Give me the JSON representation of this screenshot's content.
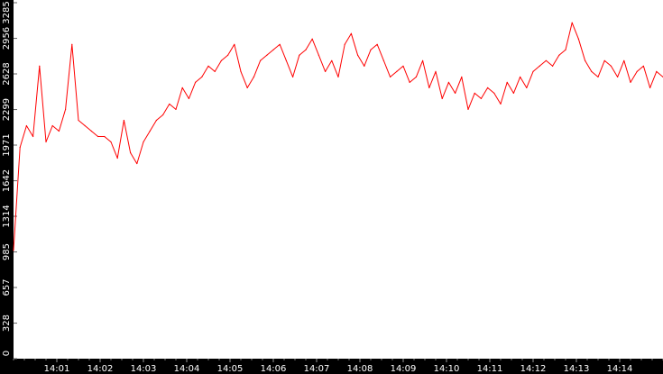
{
  "chart_data": {
    "type": "line",
    "title": "",
    "xlabel": "",
    "ylabel": "",
    "ylim": [
      0,
      3285
    ],
    "y_ticks": [
      "0",
      "328",
      "657",
      "985",
      "1314",
      "1642",
      "1971",
      "2299",
      "2628",
      "2956",
      "3285"
    ],
    "x_tick_labels": [
      "14:01",
      "14:02",
      "14:03",
      "14:04",
      "14:05",
      "14:06",
      "14:07",
      "14:08",
      "14:09",
      "14:10",
      "14:11",
      "14:12",
      "14:13",
      "14:14"
    ],
    "x_range_minutes": [
      0,
      15
    ],
    "grid": false,
    "legend": "none",
    "series": [
      {
        "color": "#ff0000",
        "x": [
          0,
          0.15,
          0.3,
          0.45,
          0.6,
          0.75,
          0.9,
          1.05,
          1.2,
          1.35,
          1.5,
          1.65,
          1.8,
          1.95,
          2.1,
          2.25,
          2.4,
          2.55,
          2.7,
          2.85,
          3.0,
          3.15,
          3.3,
          3.45,
          3.6,
          3.75,
          3.9,
          4.05,
          4.2,
          4.35,
          4.5,
          4.65,
          4.8,
          4.95,
          5.1,
          5.25,
          5.4,
          5.55,
          5.7,
          5.85,
          6.0,
          6.15,
          6.3,
          6.45,
          6.6,
          6.75,
          6.9,
          7.05,
          7.2,
          7.35,
          7.5,
          7.65,
          7.8,
          7.95,
          8.1,
          8.25,
          8.4,
          8.55,
          8.7,
          8.85,
          9.0,
          9.15,
          9.3,
          9.45,
          9.6,
          9.75,
          9.9,
          10.05,
          10.2,
          10.35,
          10.5,
          10.65,
          10.8,
          10.95,
          11.1,
          11.25,
          11.4,
          11.55,
          11.7,
          11.85,
          12.0,
          12.15,
          12.3,
          12.45,
          12.6,
          12.75,
          12.9,
          13.05,
          13.2,
          13.35,
          13.5,
          13.65,
          13.8,
          13.95,
          14.1,
          14.25,
          14.4,
          14.55,
          14.7,
          14.85,
          15.0
        ],
        "values": [
          1000,
          1950,
          2150,
          2050,
          2700,
          2000,
          2150,
          2100,
          2300,
          2900,
          2200,
          2150,
          2100,
          2050,
          2050,
          2000,
          1850,
          2200,
          1900,
          1800,
          2000,
          2100,
          2200,
          2250,
          2350,
          2300,
          2500,
          2400,
          2550,
          2600,
          2700,
          2650,
          2750,
          2800,
          2900,
          2650,
          2500,
          2600,
          2750,
          2800,
          2850,
          2900,
          2750,
          2600,
          2800,
          2850,
          2950,
          2800,
          2650,
          2750,
          2600,
          2900,
          3000,
          2800,
          2700,
          2850,
          2900,
          2750,
          2600,
          2650,
          2700,
          2550,
          2600,
          2750,
          2500,
          2650,
          2400,
          2550,
          2450,
          2600,
          2300,
          2450,
          2400,
          2500,
          2450,
          2350,
          2550,
          2450,
          2600,
          2500,
          2650,
          2700,
          2750,
          2700,
          2800,
          2850,
          3100,
          2950,
          2750,
          2650,
          2600,
          2750,
          2700,
          2600,
          2750,
          2550,
          2650,
          2700,
          2500,
          2650,
          2600
        ]
      }
    ]
  }
}
